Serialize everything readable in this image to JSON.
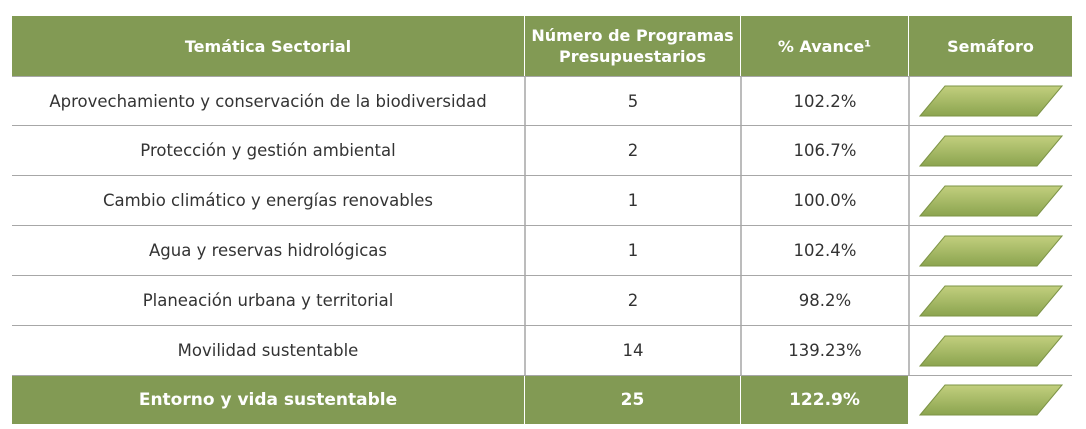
{
  "header": {
    "col1": "Temática Sectorial",
    "col2_line1": "Número de Programas",
    "col2_line2": "Presupuestarios",
    "col3": "% Avance¹",
    "col4": "Semáforo"
  },
  "rows": [
    {
      "tema": "Aprovechamiento y conservación de la biodiversidad",
      "programas": "5",
      "avance": "102.2%",
      "semaforo": "green"
    },
    {
      "tema": "Protección y gestión ambiental",
      "programas": "2",
      "avance": "106.7%",
      "semaforo": "green"
    },
    {
      "tema": "Cambio climático y energías renovables",
      "programas": "1",
      "avance": "100.0%",
      "semaforo": "green"
    },
    {
      "tema": "Agua y reservas hidrológicas",
      "programas": "1",
      "avance": "102.4%",
      "semaforo": "green"
    },
    {
      "tema": "Planeación urbana y territorial",
      "programas": "2",
      "avance": "98.2%",
      "semaforo": "green"
    },
    {
      "tema": "Movilidad sustentable",
      "programas": "14",
      "avance": "139.23%",
      "semaforo": "green"
    }
  ],
  "total": {
    "tema": "Entorno y vida sustentable",
    "programas": "25",
    "avance": "122.9%",
    "semaforo": "green"
  },
  "colors": {
    "header_bg": "#829a54",
    "light_top": "#c2cf7e",
    "light_bottom": "#8ba44f"
  }
}
